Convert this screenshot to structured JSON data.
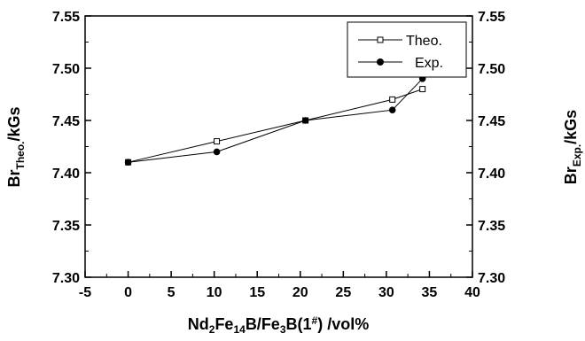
{
  "chart_data": {
    "type": "line",
    "title": "",
    "x_ticks": [
      "-5",
      "0",
      "5",
      "10",
      "15",
      "20",
      "25",
      "30",
      "35",
      "40"
    ],
    "y_ticks": [
      "7.30",
      "7.35",
      "7.40",
      "7.45",
      "7.50",
      "7.55"
    ],
    "y2_ticks": [
      "7.30",
      "7.35",
      "7.40",
      "7.45",
      "7.50",
      "7.55"
    ],
    "xlim": [
      -5,
      40
    ],
    "ylim": [
      7.3,
      7.55
    ],
    "grid": false,
    "legend_position": "top-right",
    "xlabel": {
      "p1": "Nd",
      "s1": "2",
      "p2": "Fe",
      "s2": "14",
      "p3": "B/Fe",
      "s3": "3",
      "p4": "B(1",
      "s4": "#",
      "p5": ") /vol%"
    },
    "ylabel_left": {
      "main": "Br",
      "sub": "Theo.",
      "rest": "/kGs"
    },
    "ylabel_right": {
      "main": "Br",
      "sub": "Exp.",
      "rest": "/kGs"
    },
    "series": [
      {
        "name": "Theo.",
        "marker": "open-square",
        "color": "#000000",
        "x": [
          0,
          10.3,
          20.6,
          30.7,
          34.2
        ],
        "y": [
          7.41,
          7.43,
          7.45,
          7.47,
          7.48
        ]
      },
      {
        "name": "Exp.",
        "marker": "filled-circle",
        "color": "#000000",
        "x": [
          0,
          10.3,
          20.6,
          30.7,
          34.2
        ],
        "y": [
          7.41,
          7.42,
          7.45,
          7.46,
          7.49
        ]
      }
    ]
  }
}
